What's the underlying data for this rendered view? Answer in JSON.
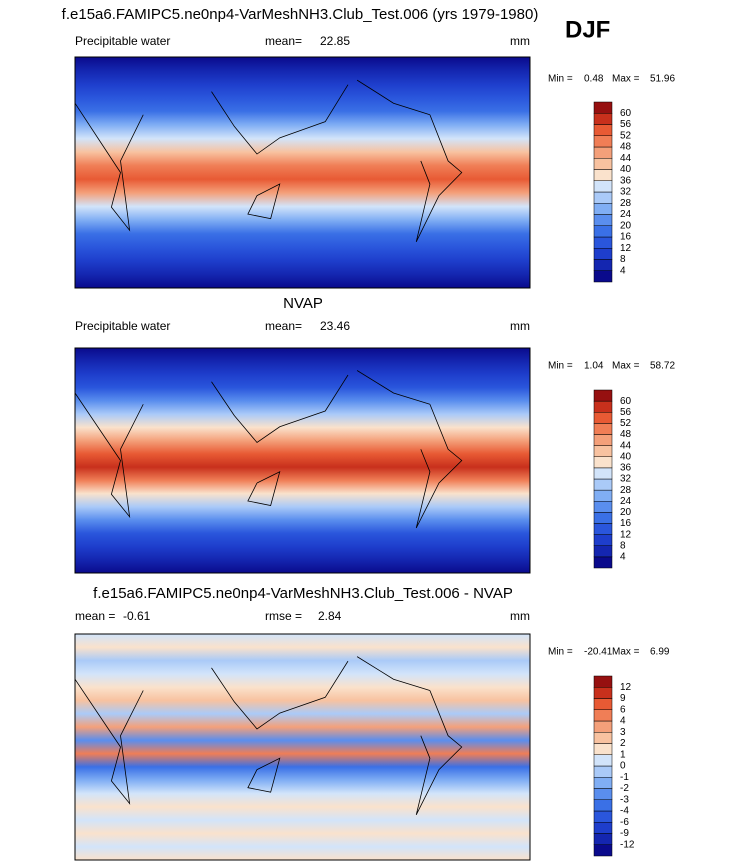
{
  "header": {
    "title": "f.e15a6.FAMIPC5.ne0np4-VarMeshNH3.Club_Test.006 (yrs 1979-1980)",
    "season": "DJF"
  },
  "panels": [
    {
      "variable": "Precipitable water",
      "mean_label": "mean=",
      "mean": 22.85,
      "units": "mm",
      "min_label": "Min =",
      "min": 0.48,
      "max_label": "Max =",
      "max": 51.96,
      "colorbar": {
        "levels": [
          4,
          8,
          12,
          16,
          20,
          24,
          28,
          32,
          36,
          40,
          44,
          48,
          52,
          56,
          60
        ],
        "colors": [
          "#0a0a8c",
          "#1426b0",
          "#1e3ecc",
          "#2a56dc",
          "#3a70e6",
          "#5a8eee",
          "#80aef4",
          "#aacaf8",
          "#d2e4fa",
          "#fae2cc",
          "#f8c2a0",
          "#f4a07a",
          "#f07e56",
          "#e85a34",
          "#c8301c",
          "#961010"
        ]
      }
    },
    {
      "title": "NVAP",
      "variable": "Precipitable water",
      "mean_label": "mean=",
      "mean": 23.46,
      "units": "mm",
      "min_label": "Min =",
      "min": 1.04,
      "max_label": "Max =",
      "max": 58.72,
      "colorbar": {
        "levels": [
          4,
          8,
          12,
          16,
          20,
          24,
          28,
          32,
          36,
          40,
          44,
          48,
          52,
          56,
          60
        ],
        "colors": [
          "#0a0a8c",
          "#1426b0",
          "#1e3ecc",
          "#2a56dc",
          "#3a70e6",
          "#5a8eee",
          "#80aef4",
          "#aacaf8",
          "#d2e4fa",
          "#fae2cc",
          "#f8c2a0",
          "#f4a07a",
          "#f07e56",
          "#e85a34",
          "#c8301c",
          "#961010"
        ]
      }
    },
    {
      "title": "f.e15a6.FAMIPC5.ne0np4-VarMeshNH3.Club_Test.006 - NVAP",
      "mean_label": "mean =",
      "mean": -0.61,
      "rmse_label": "rmse =",
      "rmse": 2.84,
      "units": "mm",
      "min_label": "Min =",
      "min": -20.41,
      "max_label": "Max =",
      "max": 6.99,
      "colorbar": {
        "levels": [
          -12,
          -9,
          -6,
          -4,
          -3,
          -2,
          -1,
          0,
          1,
          2,
          3,
          4,
          6,
          9,
          12
        ],
        "colors": [
          "#0a0a8c",
          "#1426b0",
          "#1e3ecc",
          "#2a56dc",
          "#3a70e6",
          "#5a8eee",
          "#80aef4",
          "#aacaf8",
          "#d2e4fa",
          "#fae2cc",
          "#f8c2a0",
          "#f4a07a",
          "#f07e56",
          "#e85a34",
          "#c8301c",
          "#961010"
        ]
      }
    }
  ]
}
